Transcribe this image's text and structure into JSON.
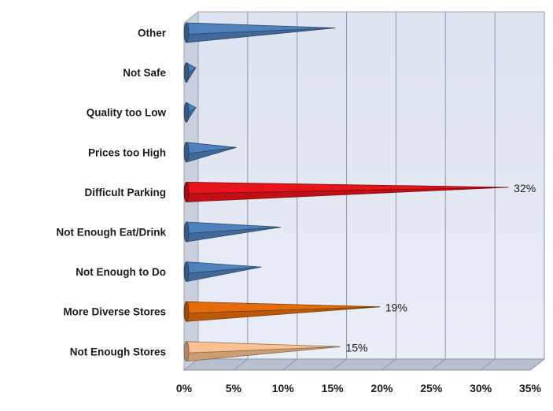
{
  "chart_data": {
    "type": "bar",
    "orientation": "horizontal",
    "categories": [
      "Other",
      "Not Safe",
      "Quality too Low",
      "Prices too High",
      "Difficult Parking",
      "Not Enough Eat/Drink",
      "Not Enough to Do",
      "More Diverse Stores",
      "Not Enough Stores"
    ],
    "values": [
      14.5,
      0.4,
      0.4,
      4.5,
      32,
      9,
      7,
      19,
      15
    ],
    "data_labels": [
      "",
      "",
      "",
      "",
      "32%",
      "",
      "",
      "19%",
      "15%"
    ],
    "colors": [
      "#4f81bd",
      "#4f81bd",
      "#4f81bd",
      "#4f81bd",
      "#e8141b",
      "#4f81bd",
      "#4f81bd",
      "#e46c0a",
      "#fac090"
    ],
    "x_ticks": [
      "0%",
      "5%",
      "10%",
      "15%",
      "20%",
      "25%",
      "30%",
      "35%"
    ],
    "xlim": [
      0,
      35
    ],
    "grid": true,
    "legend": "none",
    "style": "3d-cone"
  }
}
